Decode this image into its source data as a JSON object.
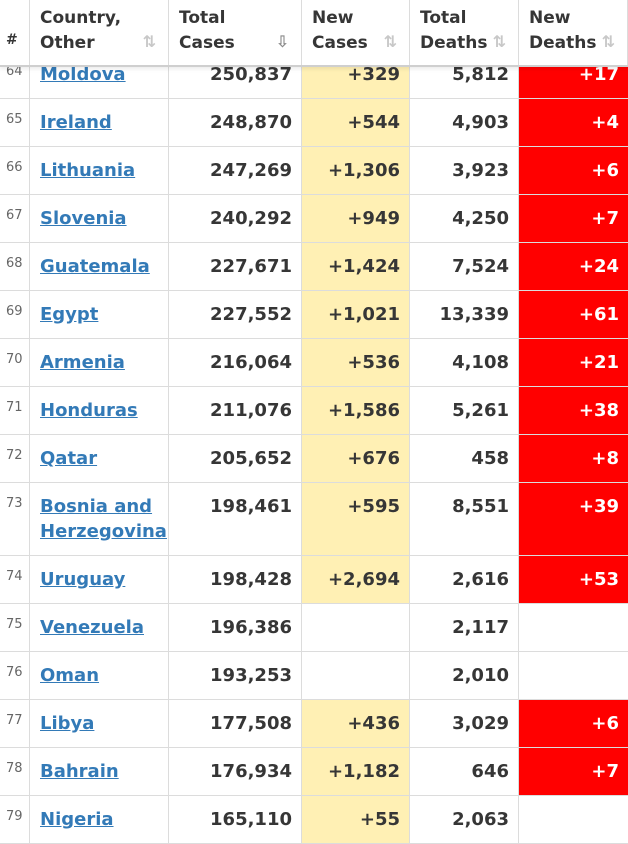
{
  "header": {
    "idx": "#",
    "country_l1": "Country,",
    "country_l2": "Other",
    "total_cases_l1": "Total",
    "total_cases_l2": "Cases",
    "new_cases_l1": "New",
    "new_cases_l2": "Cases",
    "total_deaths_l1": "Total",
    "total_deaths_l2": "Deaths",
    "new_deaths_l1": "New",
    "new_deaths_l2": "Deaths",
    "sort_icon": "⇅",
    "sort_active_icon": "⇩"
  },
  "colors": {
    "new_cases_bg": "#fff0b4",
    "new_deaths_bg": "#ff0000",
    "link": "#337ab7"
  },
  "rows": [
    {
      "idx": "64",
      "country": "Moldova",
      "total_cases": "250,837",
      "new_cases": "+329",
      "total_deaths": "5,812",
      "new_deaths": "+17"
    },
    {
      "idx": "65",
      "country": "Ireland",
      "total_cases": "248,870",
      "new_cases": "+544",
      "total_deaths": "4,903",
      "new_deaths": "+4"
    },
    {
      "idx": "66",
      "country": "Lithuania",
      "total_cases": "247,269",
      "new_cases": "+1,306",
      "total_deaths": "3,923",
      "new_deaths": "+6"
    },
    {
      "idx": "67",
      "country": "Slovenia",
      "total_cases": "240,292",
      "new_cases": "+949",
      "total_deaths": "4,250",
      "new_deaths": "+7"
    },
    {
      "idx": "68",
      "country": "Guatemala",
      "total_cases": "227,671",
      "new_cases": "+1,424",
      "total_deaths": "7,524",
      "new_deaths": "+24"
    },
    {
      "idx": "69",
      "country": "Egypt",
      "total_cases": "227,552",
      "new_cases": "+1,021",
      "total_deaths": "13,339",
      "new_deaths": "+61"
    },
    {
      "idx": "70",
      "country": "Armenia",
      "total_cases": "216,064",
      "new_cases": "+536",
      "total_deaths": "4,108",
      "new_deaths": "+21"
    },
    {
      "idx": "71",
      "country": "Honduras",
      "total_cases": "211,076",
      "new_cases": "+1,586",
      "total_deaths": "5,261",
      "new_deaths": "+38"
    },
    {
      "idx": "72",
      "country": "Qatar",
      "total_cases": "205,652",
      "new_cases": "+676",
      "total_deaths": "458",
      "new_deaths": "+8"
    },
    {
      "idx": "73",
      "country": "Bosnia and Herzegovina",
      "total_cases": "198,461",
      "new_cases": "+595",
      "total_deaths": "8,551",
      "new_deaths": "+39"
    },
    {
      "idx": "74",
      "country": "Uruguay",
      "total_cases": "198,428",
      "new_cases": "+2,694",
      "total_deaths": "2,616",
      "new_deaths": "+53"
    },
    {
      "idx": "75",
      "country": "Venezuela",
      "total_cases": "196,386",
      "new_cases": "",
      "total_deaths": "2,117",
      "new_deaths": ""
    },
    {
      "idx": "76",
      "country": "Oman",
      "total_cases": "193,253",
      "new_cases": "",
      "total_deaths": "2,010",
      "new_deaths": ""
    },
    {
      "idx": "77",
      "country": "Libya",
      "total_cases": "177,508",
      "new_cases": "+436",
      "total_deaths": "3,029",
      "new_deaths": "+6"
    },
    {
      "idx": "78",
      "country": "Bahrain",
      "total_cases": "176,934",
      "new_cases": "+1,182",
      "total_deaths": "646",
      "new_deaths": "+7"
    },
    {
      "idx": "79",
      "country": "Nigeria",
      "total_cases": "165,110",
      "new_cases": "+55",
      "total_deaths": "2,063",
      "new_deaths": ""
    }
  ]
}
